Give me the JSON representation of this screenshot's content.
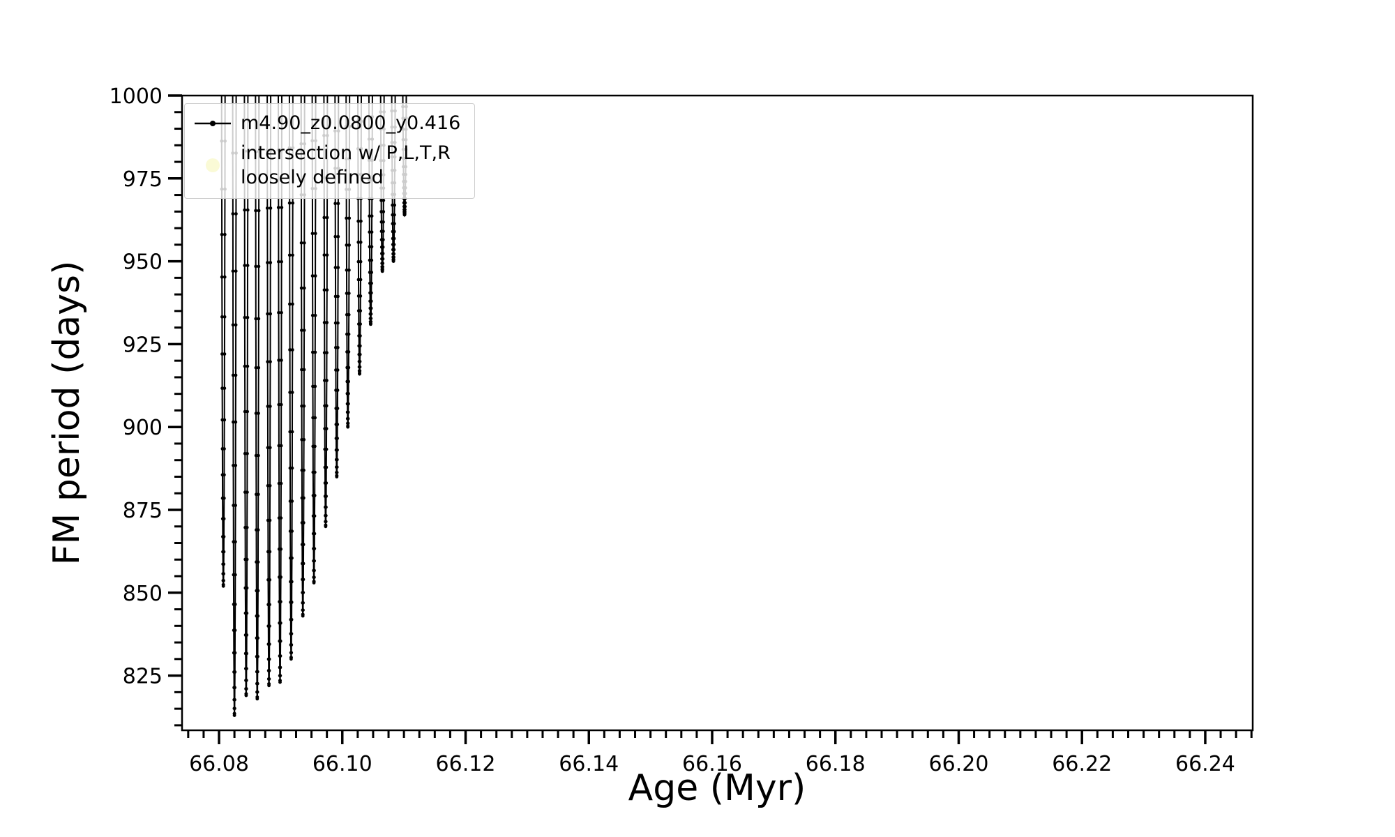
{
  "figure": {
    "xlabel": "Age (Myr)",
    "ylabel": "FM period (days)"
  },
  "legend": {
    "entries": [
      {
        "label": "m4.90_z0.0800_y0.416",
        "marker": "line-dot",
        "color": "#000000"
      },
      {
        "label_line1": "intersection w/ P,L,T,R",
        "label_line2": "loosely defined",
        "marker": "circle",
        "color": "#fafad2"
      }
    ]
  },
  "chart_data": {
    "type": "line",
    "title": "",
    "xlabel": "Age (Myr)",
    "ylabel": "FM period (days)",
    "xlim": [
      66.074,
      66.2477
    ],
    "ylim": [
      808.5,
      1000
    ],
    "grid": false,
    "legend_position": "upper-left",
    "x_major_ticks": [
      66.08,
      66.1,
      66.12,
      66.14,
      66.16,
      66.18,
      66.2,
      66.22,
      66.24
    ],
    "x_minor_step": 0.0025,
    "y_major_ticks": [
      825,
      850,
      875,
      900,
      925,
      950,
      975,
      1000
    ],
    "y_minor_step": 5,
    "axis_color": "#000000",
    "series": [
      {
        "name": "m4.90_z0.0800_y0.416",
        "color": "#000000",
        "marker": "point",
        "top_clip": 1000,
        "spike_half_width_myr": 0.0003,
        "samples_per_spike": 40,
        "spikes": [
          {
            "age": 66.0807,
            "min_period": 852
          },
          {
            "age": 66.0825,
            "min_period": 813
          },
          {
            "age": 66.0844,
            "min_period": 819
          },
          {
            "age": 66.0862,
            "min_period": 818
          },
          {
            "age": 66.0881,
            "min_period": 822
          },
          {
            "age": 66.0899,
            "min_period": 823
          },
          {
            "age": 66.0917,
            "min_period": 830
          },
          {
            "age": 66.0936,
            "min_period": 843
          },
          {
            "age": 66.0954,
            "min_period": 853
          },
          {
            "age": 66.0973,
            "min_period": 870
          },
          {
            "age": 66.0991,
            "min_period": 885
          },
          {
            "age": 66.1009,
            "min_period": 900
          },
          {
            "age": 66.1028,
            "min_period": 916
          },
          {
            "age": 66.1046,
            "min_period": 931
          },
          {
            "age": 66.1065,
            "min_period": 947
          },
          {
            "age": 66.1083,
            "min_period": 950
          },
          {
            "age": 66.1101,
            "min_period": 964
          }
        ]
      }
    ]
  }
}
